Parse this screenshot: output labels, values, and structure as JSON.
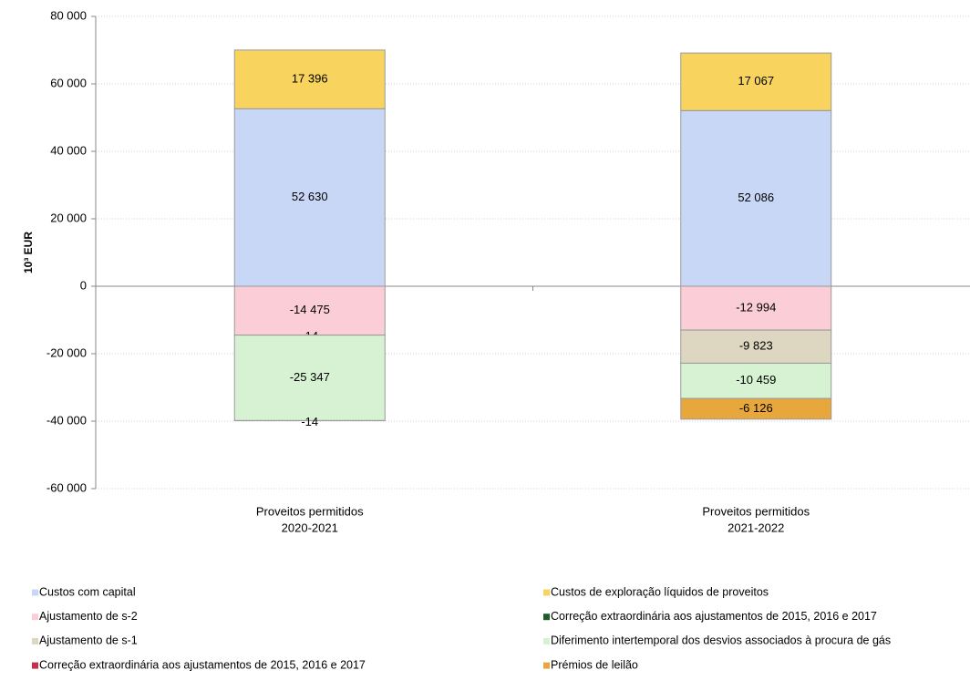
{
  "chart_data": {
    "type": "stacked_bar",
    "y_label": "10³ EUR",
    "categories": [
      [
        "Proveitos permitidos",
        "2020-2021"
      ],
      [
        "Proveitos permitidos",
        "2021-2022"
      ]
    ],
    "ylim": [
      -60000,
      80000
    ],
    "yticks": [
      {
        "value": -60000,
        "label": "-60 000"
      },
      {
        "value": -40000,
        "label": "-40 000"
      },
      {
        "value": -20000,
        "label": "-20 000"
      },
      0,
      {
        "value": 20000,
        "label": "20 000"
      },
      {
        "value": 40000,
        "label": "40 000"
      },
      {
        "value": 60000,
        "label": "60 000"
      },
      {
        "value": 80000,
        "label": "80 000"
      }
    ],
    "grid": true,
    "legend": "bottom",
    "series": [
      {
        "name": "Custos com capital",
        "color": "#c9d7f6",
        "values": [
          52630,
          52086
        ],
        "value_labels": [
          "52 630",
          "52 086"
        ]
      },
      {
        "name": "Custos de exploração líquidos de proveitos",
        "color": "#f8d45e",
        "values": [
          17396,
          17067
        ],
        "value_labels": [
          "17 396",
          "17 067"
        ]
      },
      {
        "name": "Ajustamento de s-2",
        "color": "#fbcdd7",
        "values": [
          -14475,
          -12994
        ],
        "value_labels": [
          "-14 475",
          "-12 994"
        ]
      },
      {
        "name": "Correção extraordinária aos ajustamentos de 2015, 2016 e 2017",
        "color": "#1f5c2a",
        "values": [
          null,
          null
        ]
      },
      {
        "name": "Ajustamento de s-1",
        "color": "#ddd6c0",
        "values": [
          -14,
          -9823
        ],
        "value_labels": [
          "-14",
          "-9 823"
        ]
      },
      {
        "name": "Diferimento intertemporal dos desvios associados à procura de gás",
        "color": "#d7f2d2",
        "values": [
          -25347,
          -10459
        ],
        "value_labels": [
          "-25 347",
          "-10 459"
        ]
      },
      {
        "name": "Correção extraordinária aos ajustamentos de 2015, 2016 e 2017",
        "color": "#c2304e",
        "values": [
          -14,
          null
        ],
        "value_labels": [
          "-14",
          null
        ]
      },
      {
        "name": "Prémios de leilão",
        "color": "#e8a73c",
        "values": [
          null,
          -6126
        ],
        "value_labels": [
          null,
          "-6 126"
        ]
      }
    ]
  }
}
